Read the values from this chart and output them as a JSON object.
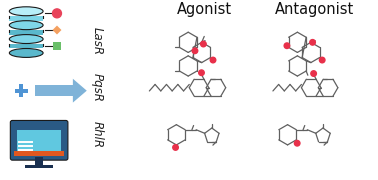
{
  "background_color": "#ffffff",
  "agonist_label": "Agonist",
  "antagonist_label": "Antagonist",
  "row_labels": [
    "LasR",
    "PqsR",
    "RhlR"
  ],
  "label_fontsize": 8.5,
  "header_fontsize": 10.5,
  "db_color_top": "#7fd6e8",
  "db_color_body": "#5ab8cc",
  "db_stroke": "#1a1a1a",
  "circle_color": "#e8435a",
  "diamond_color": "#f4a060",
  "square_color": "#6abf69",
  "plus_color": "#4f94d4",
  "arrow_color": "#7fb3d8",
  "monitor_dark": "#2a5a85",
  "monitor_screen": "#60c8e0",
  "monitor_base": "#1a3050",
  "monitor_orange": "#e05820",
  "red_dot": "#e8304a",
  "mol_color": "#606060",
  "mol_lw": 0.9
}
